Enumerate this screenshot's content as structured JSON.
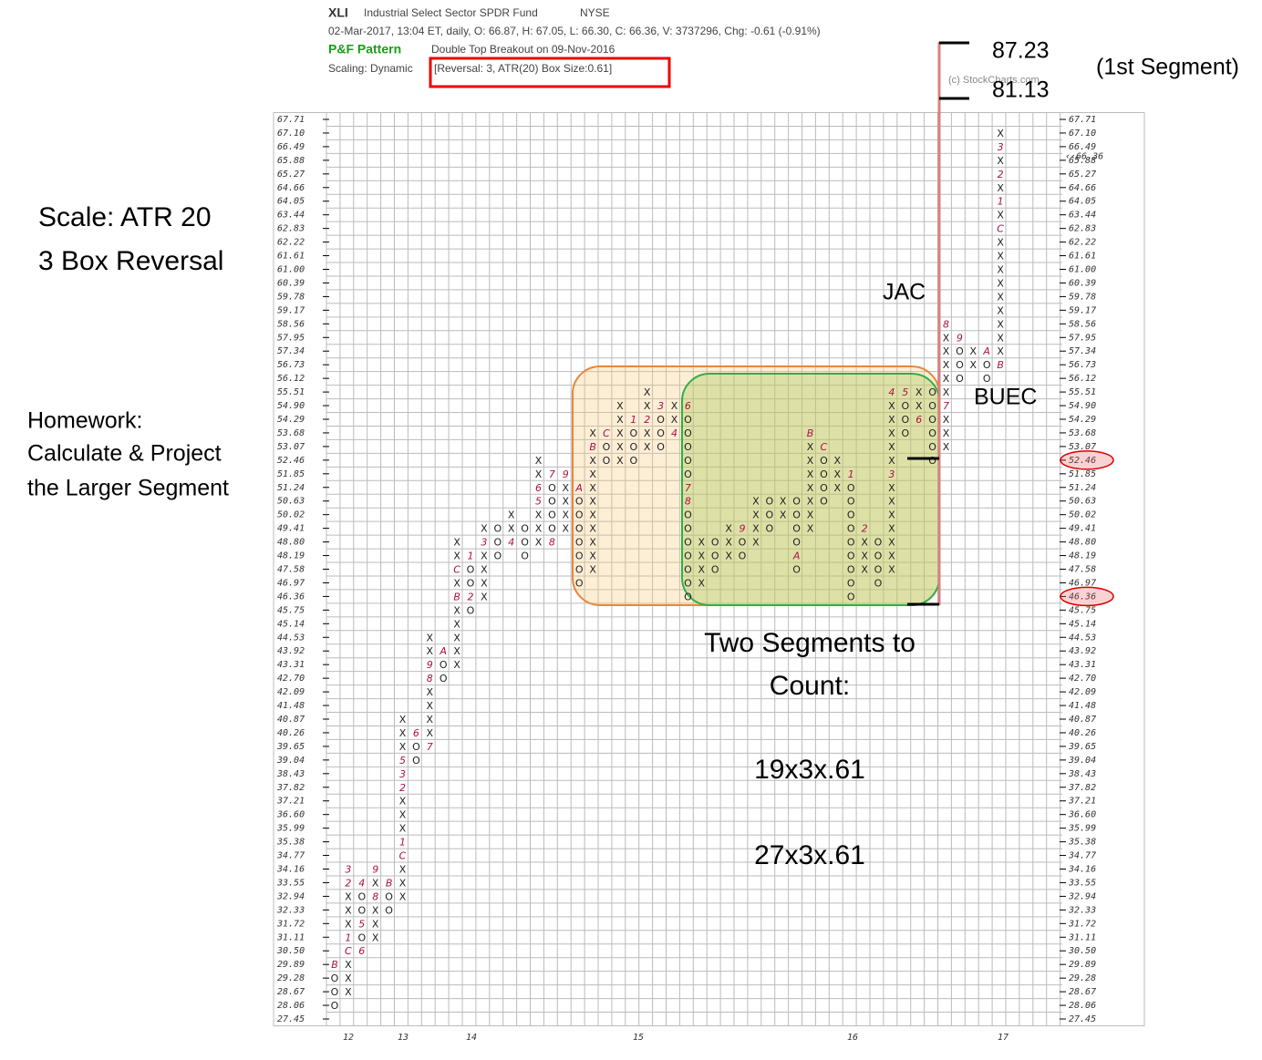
{
  "chart_data": {
    "type": "point-and-figure",
    "symbol": "XLI",
    "name": "Industrial Select Sector SPDR Fund",
    "exchange": "NYSE",
    "info": "02-Mar-2017, 13:04 ET, daily, O: 66.87, H: 67.05, L: 66.30, C: 66.36, V: 3737296, Chg: -0.61 (-0.91%)",
    "pattern_label": "P&F Pattern",
    "pattern": "Double Top Breakout on 09-Nov-2016",
    "scaling": "Scaling: Dynamic",
    "reversal": "[Reversal: 3, ATR(20) Box Size:0.61]",
    "copyright": "(c) StockCharts.com",
    "box_size": 0.61,
    "ylim": [
      27.45,
      67.71
    ],
    "yticks": [
      67.71,
      {
        "value": 67.1,
        "label": "67.10"
      },
      66.49,
      65.88,
      65.27,
      64.66,
      64.05,
      63.44,
      62.83,
      62.22,
      61.61,
      {
        "value": 61,
        "label": "61.00"
      },
      60.39,
      59.78,
      59.17,
      58.56,
      57.95,
      57.34,
      56.73,
      56.12,
      55.51,
      {
        "value": 54.9,
        "label": "54.90"
      },
      54.29,
      53.68,
      53.07,
      52.46,
      51.85,
      51.24,
      50.63,
      50.02,
      49.41,
      {
        "value": 48.8,
        "label": "48.80"
      },
      48.19,
      47.58,
      46.97,
      46.36,
      45.75,
      45.14,
      44.53,
      43.92,
      43.31,
      {
        "value": 42.7,
        "label": "42.70"
      },
      42.09,
      41.48,
      40.87,
      40.26,
      39.65,
      39.04,
      38.43,
      37.82,
      37.21,
      {
        "value": 36.6,
        "label": "36.60"
      },
      35.99,
      35.38,
      34.77,
      34.16,
      33.55,
      32.94,
      32.33,
      31.72,
      31.11,
      {
        "value": 30.5,
        "label": "30.50"
      },
      29.89,
      29.28,
      28.67,
      28.06,
      27.45
    ],
    "last_price": {
      "value": 66.36,
      "label": "‹‹66.36"
    },
    "highlighted": [
      52.46,
      46.36
    ],
    "years": [
      "12",
      "13",
      "14",
      "15",
      "16",
      "17"
    ],
    "columns": [
      {
        "low": 28.06,
        "boxes": [
          "O",
          "O",
          "O",
          "B"
        ]
      },
      {
        "low": 28.67,
        "boxes": [
          "X",
          "X",
          "X",
          "C",
          "1",
          "X",
          "X",
          "X",
          "2",
          "3"
        ]
      },
      {
        "low": 30.5,
        "boxes": [
          "6",
          "O",
          "5",
          "O",
          "O",
          "4"
        ]
      },
      {
        "low": 31.11,
        "boxes": [
          "X",
          "X",
          "X",
          "8",
          "X",
          "9"
        ]
      },
      {
        "low": 32.33,
        "boxes": [
          "O",
          "O",
          "B"
        ]
      },
      {
        "low": 32.94,
        "boxes": [
          "X",
          "X",
          "X",
          "C",
          "1",
          "X",
          "X",
          "X",
          "2",
          "3",
          "5",
          "X",
          "X",
          "X"
        ]
      },
      {
        "low": 39.04,
        "boxes": [
          "O",
          "O",
          "6"
        ]
      },
      {
        "low": 39.65,
        "boxes": [
          "7",
          "X",
          "X",
          "X",
          "X",
          "8",
          "9",
          "X",
          "X"
        ]
      },
      {
        "low": 42.7,
        "boxes": [
          "O",
          "O",
          "A"
        ]
      },
      {
        "low": 43.31,
        "boxes": [
          "X",
          "X",
          "X",
          "X",
          "X",
          "B",
          "X",
          "C",
          "X",
          "X"
        ]
      },
      {
        "low": 45.75,
        "boxes": [
          "O",
          "2",
          "O",
          "O",
          "1"
        ]
      },
      {
        "low": 46.36,
        "boxes": [
          "X",
          "X",
          "X",
          "X",
          "3",
          "X"
        ]
      },
      {
        "low": 48.19,
        "boxes": [
          "O",
          "O",
          "O"
        ]
      },
      {
        "low": 48.8,
        "boxes": [
          "4",
          "X",
          "X"
        ]
      },
      {
        "low": 48.19,
        "boxes": [
          "O",
          "O",
          "O"
        ]
      },
      {
        "low": 48.8,
        "boxes": [
          "X",
          "X",
          "X",
          "5",
          "6",
          "X",
          "X"
        ]
      },
      {
        "low": 48.8,
        "boxes": [
          "8",
          "O",
          "O",
          "O",
          "O",
          "7"
        ]
      },
      {
        "low": 49.41,
        "boxes": [
          "X",
          "X",
          "X",
          "X",
          "9"
        ]
      },
      {
        "low": 46.97,
        "boxes": [
          "O",
          "O",
          "O",
          "O",
          "O",
          "O",
          "O",
          "A"
        ]
      },
      {
        "low": 47.58,
        "boxes": [
          "X",
          "X",
          "X",
          "X",
          "X",
          "X",
          "X",
          "X",
          "X",
          "B",
          "X"
        ]
      },
      {
        "low": 52.46,
        "boxes": [
          "O",
          "O",
          "C"
        ]
      },
      {
        "low": 52.46,
        "boxes": [
          "X",
          "X",
          "X",
          "X",
          "X"
        ]
      },
      {
        "low": 52.46,
        "boxes": [
          "O",
          "O",
          "O",
          "1"
        ]
      },
      {
        "low": 53.07,
        "boxes": [
          "X",
          "X",
          "2",
          "X",
          "X"
        ]
      },
      {
        "low": 53.07,
        "boxes": [
          "O",
          "O",
          "O",
          "3"
        ]
      },
      {
        "low": 53.68,
        "boxes": [
          "4",
          "X",
          "X"
        ]
      },
      {
        "low": 46.36,
        "boxes": [
          "O",
          "O",
          "O",
          "O",
          "O",
          "O",
          "O",
          "8",
          "7",
          "O",
          "O",
          "O",
          "O",
          "O",
          "6"
        ]
      },
      {
        "low": 46.97,
        "boxes": [
          "X",
          "X",
          "X",
          "X"
        ]
      },
      {
        "low": 47.58,
        "boxes": [
          "O",
          "O",
          "O"
        ]
      },
      {
        "low": 48.19,
        "boxes": [
          "X",
          "X",
          "X"
        ]
      },
      {
        "low": 48.19,
        "boxes": [
          "O",
          "O",
          "9"
        ]
      },
      {
        "low": 48.8,
        "boxes": [
          "X",
          "X",
          "X",
          "X"
        ]
      },
      {
        "low": 49.41,
        "boxes": [
          "O",
          "O",
          "O"
        ]
      },
      {
        "low": 50.02,
        "boxes": [
          "X",
          "X"
        ]
      },
      {
        "low": 47.58,
        "boxes": [
          "O",
          "A",
          "O",
          "O",
          "O",
          "O"
        ]
      },
      {
        "low": 49.41,
        "boxes": [
          "X",
          "X",
          "X",
          "X",
          "X",
          "X",
          "X",
          "B"
        ]
      },
      {
        "low": 50.63,
        "boxes": [
          "O",
          "O",
          "O",
          "O",
          "C"
        ]
      },
      {
        "low": 51.24,
        "boxes": [
          "X",
          "X",
          "X"
        ]
      },
      {
        "low": 46.36,
        "boxes": [
          "O",
          "O",
          "O",
          "O",
          "O",
          "O",
          "O",
          "O",
          "O",
          "1"
        ]
      },
      {
        "low": 47.58,
        "boxes": [
          "X",
          "X",
          "X",
          "2"
        ]
      },
      {
        "low": 46.97,
        "boxes": [
          "O",
          "O",
          "O",
          "O"
        ]
      },
      {
        "low": 47.58,
        "boxes": [
          "X",
          "X",
          "X",
          "X",
          "X",
          "X",
          "X",
          "3",
          "X",
          "X",
          "X",
          "X",
          "X",
          "4"
        ]
      },
      {
        "low": 53.68,
        "boxes": [
          "O",
          "O",
          "O",
          "5"
        ]
      },
      {
        "low": 54.29,
        "boxes": [
          "6",
          "X",
          "X"
        ]
      },
      {
        "low": 52.46,
        "boxes": [
          "O",
          "O",
          "O",
          "O",
          "O",
          "O"
        ]
      },
      {
        "low": 53.07,
        "boxes": [
          "X",
          "X",
          "X",
          "7",
          "X",
          "X",
          "X",
          "X",
          "X",
          "8"
        ]
      },
      {
        "low": 56.12,
        "boxes": [
          "O",
          "O",
          "O",
          "9"
        ]
      },
      {
        "low": 56.73,
        "boxes": [
          "X",
          "X"
        ]
      },
      {
        "low": 56.12,
        "boxes": [
          "O",
          "O",
          "A"
        ]
      },
      {
        "low": 56.73,
        "boxes": [
          "B",
          "X",
          "X",
          "X",
          "X",
          "X",
          "X",
          "X",
          "X",
          "X",
          "C",
          "X",
          "1",
          "X",
          "2",
          "X",
          "3",
          "X"
        ]
      }
    ],
    "annotations": {
      "target_high": "87.23",
      "target_low": "81.13",
      "segment": "(1st Segment)",
      "scale_1": "Scale: ATR 20",
      "scale_2": "3 Box Reversal",
      "homework_1": "Homework:",
      "homework_2": "Calculate & Project",
      "homework_3": "the Larger Segment",
      "jac": "JAC",
      "buec": "BUEC",
      "count_1": "Two Segments to",
      "count_2": "Count:",
      "calc_1": "19x3x.61",
      "calc_2": "27x3x.61"
    }
  }
}
